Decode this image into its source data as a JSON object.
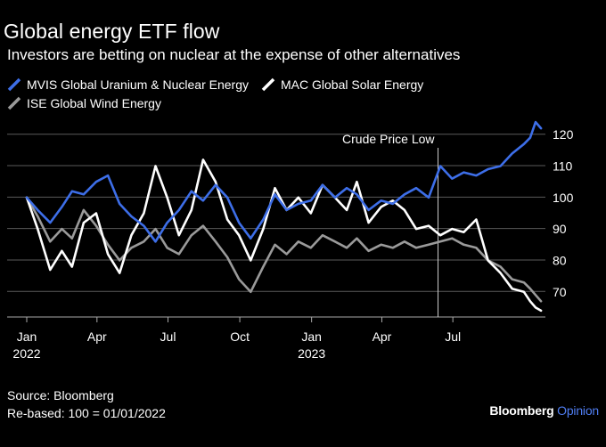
{
  "chart_data": {
    "type": "line",
    "title": "Global energy ETF flow",
    "subtitle": "Investors are betting on nuclear at the expense of other alternatives",
    "ylim": [
      62,
      126
    ],
    "yticks": [
      70,
      80,
      90,
      100,
      110,
      120
    ],
    "xticks": [
      {
        "date": "2022-01-01",
        "label": "Jan",
        "sub": "2022"
      },
      {
        "date": "2022-04-01",
        "label": "Apr",
        "sub": ""
      },
      {
        "date": "2022-07-01",
        "label": "Jul",
        "sub": ""
      },
      {
        "date": "2022-10-01",
        "label": "Oct",
        "sub": ""
      },
      {
        "date": "2023-01-01",
        "label": "Jan",
        "sub": "2023"
      },
      {
        "date": "2023-04-01",
        "label": "Apr",
        "sub": ""
      },
      {
        "date": "2023-07-01",
        "label": "Jul",
        "sub": ""
      }
    ],
    "grid": true,
    "legend_position": "top-left",
    "annotation": {
      "date": "2023-06-12",
      "label": "Crude Price Low"
    },
    "series": [
      {
        "name": "MVIS Global Uranium & Nuclear Energy",
        "color": "#3d6ee8",
        "points": [
          [
            "2022-01-01",
            100
          ],
          [
            "2022-01-15",
            96
          ],
          [
            "2022-01-31",
            92
          ],
          [
            "2022-02-15",
            97
          ],
          [
            "2022-02-28",
            102
          ],
          [
            "2022-03-15",
            101
          ],
          [
            "2022-03-31",
            105
          ],
          [
            "2022-04-15",
            107
          ],
          [
            "2022-04-30",
            98
          ],
          [
            "2022-05-15",
            94
          ],
          [
            "2022-05-31",
            91
          ],
          [
            "2022-06-15",
            86
          ],
          [
            "2022-06-30",
            92
          ],
          [
            "2022-07-15",
            96
          ],
          [
            "2022-07-31",
            102
          ],
          [
            "2022-08-15",
            99
          ],
          [
            "2022-08-31",
            104
          ],
          [
            "2022-09-15",
            100
          ],
          [
            "2022-09-30",
            92
          ],
          [
            "2022-10-15",
            87
          ],
          [
            "2022-10-31",
            93
          ],
          [
            "2022-11-15",
            101
          ],
          [
            "2022-11-30",
            96
          ],
          [
            "2022-12-15",
            98
          ],
          [
            "2022-12-31",
            99
          ],
          [
            "2023-01-15",
            104
          ],
          [
            "2023-01-31",
            100
          ],
          [
            "2023-02-15",
            103
          ],
          [
            "2023-02-28",
            101
          ],
          [
            "2023-03-15",
            96
          ],
          [
            "2023-03-31",
            99
          ],
          [
            "2023-04-15",
            98
          ],
          [
            "2023-04-30",
            101
          ],
          [
            "2023-05-15",
            103
          ],
          [
            "2023-05-31",
            100
          ],
          [
            "2023-06-15",
            110
          ],
          [
            "2023-06-30",
            106
          ],
          [
            "2023-07-15",
            108
          ],
          [
            "2023-07-31",
            107
          ],
          [
            "2023-08-15",
            109
          ],
          [
            "2023-08-31",
            110
          ],
          [
            "2023-09-15",
            114
          ],
          [
            "2023-09-30",
            117
          ],
          [
            "2023-10-08",
            119
          ],
          [
            "2023-10-15",
            124
          ],
          [
            "2023-10-22",
            122
          ]
        ]
      },
      {
        "name": "MAC Global Solar Energy",
        "color": "#ffffff",
        "points": [
          [
            "2022-01-01",
            100
          ],
          [
            "2022-01-15",
            90
          ],
          [
            "2022-01-31",
            77
          ],
          [
            "2022-02-15",
            83
          ],
          [
            "2022-02-28",
            78
          ],
          [
            "2022-03-15",
            92
          ],
          [
            "2022-03-31",
            95
          ],
          [
            "2022-04-15",
            82
          ],
          [
            "2022-04-30",
            76
          ],
          [
            "2022-05-15",
            88
          ],
          [
            "2022-05-31",
            95
          ],
          [
            "2022-06-15",
            110
          ],
          [
            "2022-06-30",
            100
          ],
          [
            "2022-07-15",
            88
          ],
          [
            "2022-07-31",
            96
          ],
          [
            "2022-08-15",
            112
          ],
          [
            "2022-08-31",
            105
          ],
          [
            "2022-09-15",
            93
          ],
          [
            "2022-09-30",
            88
          ],
          [
            "2022-10-15",
            80
          ],
          [
            "2022-10-31",
            90
          ],
          [
            "2022-11-15",
            103
          ],
          [
            "2022-11-30",
            96
          ],
          [
            "2022-12-15",
            100
          ],
          [
            "2022-12-31",
            95
          ],
          [
            "2023-01-15",
            104
          ],
          [
            "2023-01-31",
            100
          ],
          [
            "2023-02-15",
            96
          ],
          [
            "2023-02-28",
            105
          ],
          [
            "2023-03-15",
            92
          ],
          [
            "2023-03-31",
            97
          ],
          [
            "2023-04-15",
            99
          ],
          [
            "2023-04-30",
            96
          ],
          [
            "2023-05-15",
            90
          ],
          [
            "2023-05-31",
            91
          ],
          [
            "2023-06-15",
            88
          ],
          [
            "2023-06-30",
            90
          ],
          [
            "2023-07-15",
            89
          ],
          [
            "2023-07-31",
            93
          ],
          [
            "2023-08-15",
            80
          ],
          [
            "2023-08-31",
            76
          ],
          [
            "2023-09-15",
            71
          ],
          [
            "2023-09-30",
            70
          ],
          [
            "2023-10-08",
            67
          ],
          [
            "2023-10-15",
            65
          ],
          [
            "2023-10-22",
            64
          ]
        ]
      },
      {
        "name": "ISE Global Wind Energy",
        "color": "#9a9a9a",
        "points": [
          [
            "2022-01-01",
            100
          ],
          [
            "2022-01-15",
            94
          ],
          [
            "2022-01-31",
            86
          ],
          [
            "2022-02-15",
            90
          ],
          [
            "2022-02-28",
            87
          ],
          [
            "2022-03-15",
            96
          ],
          [
            "2022-03-31",
            91
          ],
          [
            "2022-04-15",
            85
          ],
          [
            "2022-04-30",
            80
          ],
          [
            "2022-05-15",
            84
          ],
          [
            "2022-05-31",
            86
          ],
          [
            "2022-06-15",
            90
          ],
          [
            "2022-06-30",
            84
          ],
          [
            "2022-07-15",
            82
          ],
          [
            "2022-07-31",
            88
          ],
          [
            "2022-08-15",
            91
          ],
          [
            "2022-08-31",
            86
          ],
          [
            "2022-09-15",
            81
          ],
          [
            "2022-09-30",
            74
          ],
          [
            "2022-10-15",
            70
          ],
          [
            "2022-10-31",
            78
          ],
          [
            "2022-11-15",
            85
          ],
          [
            "2022-11-30",
            82
          ],
          [
            "2022-12-15",
            86
          ],
          [
            "2022-12-31",
            84
          ],
          [
            "2023-01-15",
            88
          ],
          [
            "2023-01-31",
            86
          ],
          [
            "2023-02-15",
            84
          ],
          [
            "2023-02-28",
            87
          ],
          [
            "2023-03-15",
            83
          ],
          [
            "2023-03-31",
            85
          ],
          [
            "2023-04-15",
            84
          ],
          [
            "2023-04-30",
            86
          ],
          [
            "2023-05-15",
            84
          ],
          [
            "2023-05-31",
            85
          ],
          [
            "2023-06-15",
            86
          ],
          [
            "2023-06-30",
            87
          ],
          [
            "2023-07-15",
            85
          ],
          [
            "2023-07-31",
            84
          ],
          [
            "2023-08-15",
            80
          ],
          [
            "2023-08-31",
            78
          ],
          [
            "2023-09-15",
            74
          ],
          [
            "2023-09-30",
            73
          ],
          [
            "2023-10-08",
            71
          ],
          [
            "2023-10-15",
            69
          ],
          [
            "2023-10-22",
            67
          ]
        ]
      }
    ]
  },
  "footer": {
    "source": "Source: Bloomberg",
    "rebased": "Re-based: 100 = 01/01/2022"
  },
  "brand": {
    "name": "Bloomberg",
    "product": "Opinion"
  }
}
